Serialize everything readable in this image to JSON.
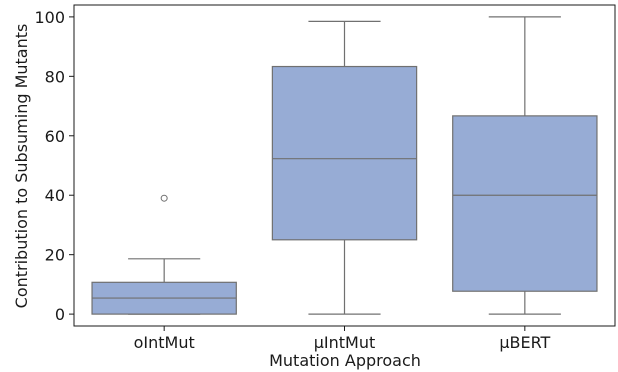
{
  "chart_data": {
    "type": "box",
    "title": "",
    "xlabel": "Mutation Approach",
    "ylabel": "Contribution to Subsuming Mutants",
    "categories": [
      "oIntMut",
      "μIntMut",
      "μBERT"
    ],
    "ylim": [
      -4,
      104
    ],
    "yticks": [
      0,
      20,
      40,
      60,
      80,
      100
    ],
    "grid": false,
    "legend": "none",
    "box_color": "#97acd5",
    "edge_color": "#707070",
    "boxes": [
      {
        "category": "oIntMut",
        "whisker_low": 0,
        "q1": 0,
        "median": 5.4,
        "q3": 10.7,
        "whisker_high": 18.6,
        "outliers": [
          39
        ]
      },
      {
        "category": "μIntMut",
        "whisker_low": 0,
        "q1": 25,
        "median": 52.3,
        "q3": 83.3,
        "whisker_high": 98.5,
        "outliers": []
      },
      {
        "category": "μBERT",
        "whisker_low": 0,
        "q1": 7.7,
        "median": 40,
        "q3": 66.7,
        "whisker_high": 100,
        "outliers": []
      }
    ]
  }
}
